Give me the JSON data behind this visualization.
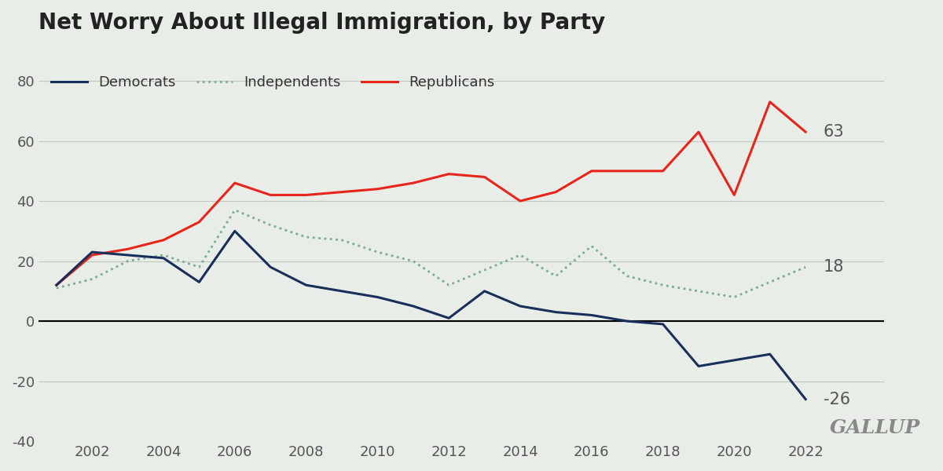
{
  "title": "Net Worry About Illegal Immigration, by Party",
  "background_color": "#e8ede8",
  "years": [
    2001,
    2002,
    2003,
    2004,
    2005,
    2006,
    2007,
    2008,
    2009,
    2010,
    2011,
    2012,
    2013,
    2014,
    2015,
    2016,
    2017,
    2018,
    2019,
    2020,
    2021,
    2022
  ],
  "republicans": [
    12,
    22,
    24,
    27,
    33,
    46,
    42,
    42,
    43,
    44,
    46,
    49,
    48,
    40,
    43,
    50,
    50,
    50,
    63,
    42,
    73,
    63
  ],
  "independents": [
    11,
    14,
    20,
    22,
    18,
    37,
    32,
    28,
    27,
    23,
    20,
    12,
    17,
    22,
    15,
    25,
    15,
    12,
    10,
    8,
    13,
    18
  ],
  "democrats": [
    12,
    23,
    22,
    21,
    13,
    30,
    18,
    12,
    10,
    8,
    5,
    1,
    10,
    5,
    3,
    2,
    0,
    -1,
    -15,
    -13,
    -11,
    -26
  ],
  "end_labels": {
    "republicans": 63,
    "independents": 18,
    "democrats": -26
  },
  "colors": {
    "republicans": "#e8251b",
    "independents": "#7aab96",
    "democrats": "#1a2e5a"
  },
  "ylim": [
    -40,
    90
  ],
  "yticks": [
    -40,
    -20,
    0,
    20,
    40,
    60,
    80
  ],
  "xlabel": "",
  "ylabel": "",
  "gallup_text": "GALLUP",
  "title_fontsize": 20,
  "tick_fontsize": 13,
  "label_fontsize": 13
}
